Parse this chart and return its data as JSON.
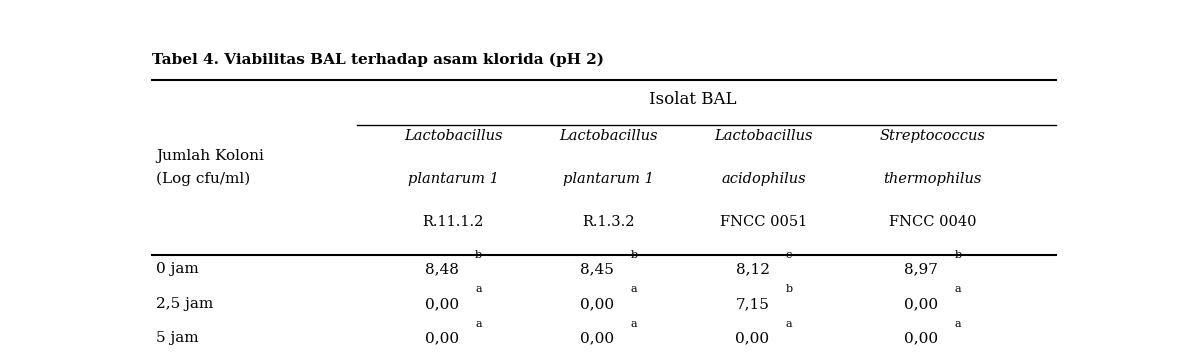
{
  "title": "Tabel 4. Viabilitas BAL terhadap asam klorida (pH 2)",
  "header_group": "Isolat BAL",
  "row_header_line1": "Jumlah Koloni",
  "row_header_line2": "(Log cfu/ml)",
  "col_headers_line1": [
    "Lactobacillus",
    "Lactobacillus",
    "Lactobacillus",
    "Streptococcus"
  ],
  "col_headers_line2": [
    "plantarum 1",
    "plantarum 1",
    "acidophilus",
    "thermophilus"
  ],
  "col_headers_line3": [
    "R.11.1.2",
    "R.1.3.2",
    "FNCC 0051",
    "FNCC 0040"
  ],
  "row_labels": [
    "0 jam",
    "2,5 jam",
    "5 jam"
  ],
  "data_vals": [
    [
      "8,48",
      "8,45",
      "8,12",
      "8,97"
    ],
    [
      "0,00",
      "0,00",
      "7,15",
      "0,00"
    ],
    [
      "0,00",
      "0,00",
      "0,00",
      "0,00"
    ]
  ],
  "data_sups": [
    [
      "b",
      "b",
      "c",
      "b"
    ],
    [
      "a",
      "a",
      "b",
      "a"
    ],
    [
      "a",
      "a",
      "a",
      "a"
    ]
  ],
  "bg_color": "white",
  "text_color": "black",
  "title_fontsize": 11,
  "header_fontsize": 11,
  "cell_fontsize": 11,
  "fig_width": 11.78,
  "fig_height": 3.56
}
